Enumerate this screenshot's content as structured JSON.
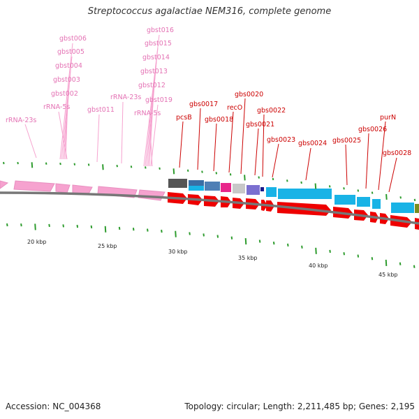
{
  "title": "Streptococcus agalactiae NEM316, complete genome",
  "footer": {
    "accession": "Accession: NC_004368",
    "summary": "Topology: circular; Length: 2,211,485 bp; Genes: 2,195"
  },
  "colors": {
    "pink_feature": "#f6a2cf",
    "pink_label": "#e472b4",
    "red_feature": "#ee0000",
    "red_label": "#cc0000",
    "tick": "#2e9c2e",
    "backbone": "#777777"
  },
  "scale_labels": [
    "20 kbp",
    "25 kbp",
    "30 kbp",
    "35 kbp",
    "40 kbp",
    "45 kbp"
  ],
  "pink_labels": [
    "gbst006",
    "gbst005",
    "gbst004",
    "gbst003",
    "gbst002",
    "rRNA-5s",
    "rRNA-23s",
    "gbst011",
    "rRNA-23s",
    "gbst016",
    "gbst015",
    "gbst014",
    "gbst013",
    "gbst012",
    "gbst019",
    "rRNA-5s"
  ],
  "red_labels": [
    "pcsB",
    "gbs0017",
    "gbs0018",
    "recO",
    "gbs0020",
    "gbs0021",
    "gbs0022",
    "gbs0023",
    "gbs0024",
    "gbs0025",
    "gbs0026",
    "purN",
    "gbs0028"
  ]
}
